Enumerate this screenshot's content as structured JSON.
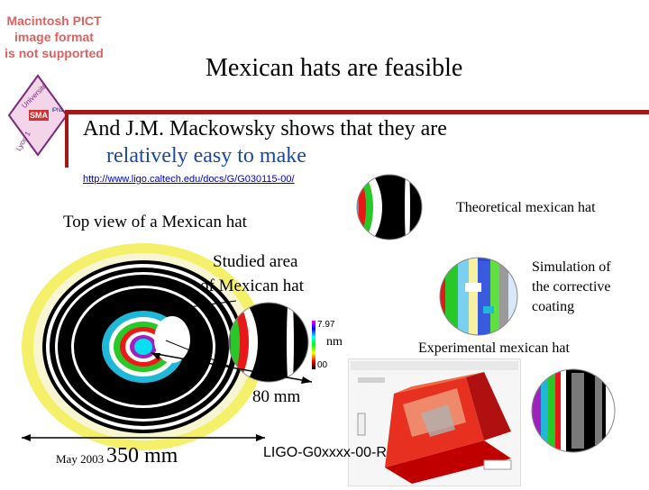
{
  "header": {
    "pict_notice": [
      "Macintosh PICT",
      "image format",
      "is not supported"
    ],
    "title": "Mexican hats are feasible",
    "subtitle_line1": "And J.M. Mackowsky shows that they are",
    "subtitle_line2": "relatively easy to make",
    "url": "http://www.ligo.caltech.edu/docs/G/G030115-00/"
  },
  "logo": {
    "text_top": "Université",
    "text_center": "SMA",
    "text_bottom": "Lyon 1",
    "text_inner": "IPNL"
  },
  "labels": {
    "top_view": "Top view of a Mexican hat",
    "studied_area_line1": "Studied area",
    "studied_area_line2": "of Mexican hat",
    "theoretical": "Theoretical mexican hat",
    "simulation_line1": "Simulation of",
    "simulation_line2": "the corrective",
    "simulation_line3": "coating",
    "experimental": "Experimental mexican hat",
    "dimension_80": "80 mm",
    "dimension_350": "350 mm",
    "scale_nm": "nm",
    "scale_top": "7.97",
    "scale_bottom": "00"
  },
  "footer": {
    "date": "May 2003",
    "doc_code": "LIGO-G0xxxx-00-R"
  },
  "colors": {
    "accent_line": "#a31818",
    "subtitle_blue": "#1a4aa0",
    "link_blue": "#0000cc",
    "pict_red": "#e06060"
  }
}
